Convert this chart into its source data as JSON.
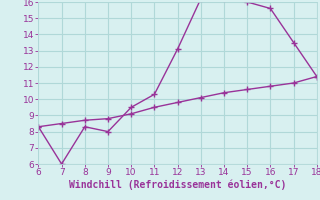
{
  "xlabel": "Windchill (Refroidissement éolien,°C)",
  "line1_x": [
    6,
    7,
    8,
    9,
    10,
    11,
    12,
    13,
    14,
    15,
    16,
    17,
    18
  ],
  "line1_y": [
    8.3,
    6.0,
    8.3,
    8.0,
    9.5,
    10.3,
    13.1,
    16.2,
    16.2,
    16.0,
    15.6,
    13.5,
    11.4
  ],
  "line2_x": [
    6,
    7,
    8,
    9,
    10,
    11,
    12,
    13,
    14,
    15,
    16,
    17,
    18
  ],
  "line2_y": [
    8.3,
    8.5,
    8.7,
    8.8,
    9.1,
    9.5,
    9.8,
    10.1,
    10.4,
    10.6,
    10.8,
    11.0,
    11.4
  ],
  "line_color": "#993399",
  "bg_color": "#d8f0f0",
  "grid_color": "#b0d8d8",
  "xlim": [
    6,
    18
  ],
  "ylim": [
    6,
    16
  ],
  "xticks": [
    6,
    7,
    8,
    9,
    10,
    11,
    12,
    13,
    14,
    15,
    16,
    17,
    18
  ],
  "yticks": [
    6,
    7,
    8,
    9,
    10,
    11,
    12,
    13,
    14,
    15,
    16
  ],
  "marker": "+",
  "markersize": 5,
  "linewidth": 1.0,
  "tick_fontsize": 6.5,
  "xlabel_fontsize": 7,
  "xlabel_color": "#993399",
  "tick_color": "#993399"
}
